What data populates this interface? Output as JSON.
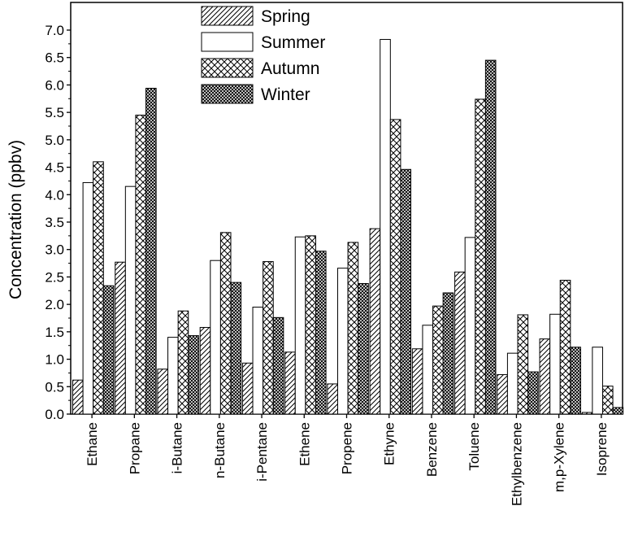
{
  "chart_data": {
    "type": "bar",
    "ylabel": "Concentration (ppbv)",
    "xlabel": "",
    "ylim": [
      0,
      7.4
    ],
    "yticks": [
      "0.0",
      "0.5",
      "1.0",
      "1.5",
      "2.0",
      "2.5",
      "3.0",
      "3.5",
      "4.0",
      "4.5",
      "5.0",
      "5.5",
      "6.0",
      "6.5",
      "7.0"
    ],
    "legend_position": "top-center",
    "categories": [
      "Ethane",
      "Propane",
      "i-Butane",
      "n-Butane",
      "i-Pentane",
      "Ethene",
      "Propene",
      "Ethyne",
      "Benzene",
      "Toluene",
      "Ethylbenzene",
      "m,p-Xylene",
      "Isoprene"
    ],
    "series": [
      {
        "name": "Spring",
        "pattern": "diagonal",
        "values": [
          0.62,
          2.77,
          0.82,
          1.58,
          0.93,
          1.13,
          0.55,
          3.38,
          1.19,
          2.59,
          0.72,
          1.37,
          0.03
        ]
      },
      {
        "name": "Summer",
        "pattern": "empty",
        "values": [
          4.22,
          4.15,
          1.4,
          2.8,
          1.95,
          3.23,
          2.66,
          6.83,
          1.62,
          3.22,
          1.11,
          1.82,
          1.22
        ]
      },
      {
        "name": "Autumn",
        "pattern": "cross",
        "values": [
          4.6,
          5.45,
          1.88,
          3.31,
          2.78,
          3.25,
          3.13,
          5.37,
          1.97,
          5.74,
          1.81,
          2.44,
          0.51
        ]
      },
      {
        "name": "Winter",
        "pattern": "dense-cross",
        "values": [
          2.34,
          5.94,
          1.43,
          2.4,
          1.76,
          2.97,
          2.38,
          4.46,
          2.21,
          6.45,
          0.77,
          1.22,
          0.12
        ]
      }
    ]
  }
}
